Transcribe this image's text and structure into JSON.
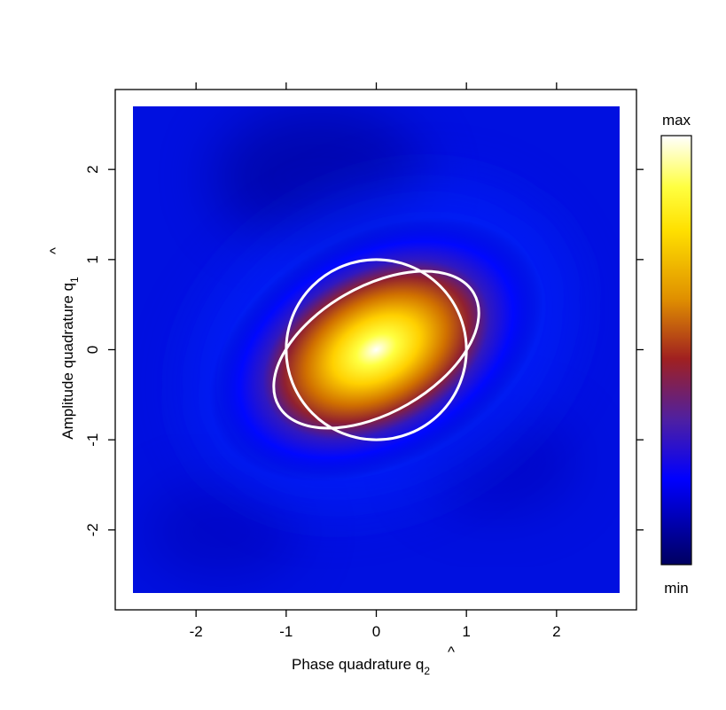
{
  "chart_data": {
    "type": "heatmap",
    "title": "",
    "xlabel": "Phase quadrature q",
    "xlabel_subscript": "2",
    "xlabel_hat": "^",
    "ylabel": "Amplitude quadrature q",
    "ylabel_subscript": "1",
    "ylabel_hat": "^",
    "xlim": [
      -2.7,
      2.7
    ],
    "ylim": [
      -2.7,
      2.7
    ],
    "x_ticks": [
      -2,
      -1,
      0,
      1,
      2
    ],
    "y_ticks": [
      -2,
      -1,
      0,
      1,
      2
    ],
    "x_tick_labels": [
      "-2",
      "-1",
      "0",
      "1",
      "2"
    ],
    "y_tick_labels": [
      "-2",
      "-1",
      "0",
      "1",
      "2"
    ],
    "colorbar": {
      "max_label": "max",
      "min_label": "min",
      "colors": [
        "#ffffff",
        "#ffff00",
        "#e09000",
        "#a02020",
        "#4020a0",
        "#0000ff",
        "#000050"
      ]
    },
    "distribution": {
      "center": [
        0,
        0
      ],
      "sigma_major": 0.62,
      "sigma_minor": 0.4,
      "major_axis_angle_deg": 28
    },
    "ellipses": [
      {
        "name": "",
        "center": [
          0,
          0
        ],
        "semi_major": 1.25,
        "semi_minor": 0.7,
        "angle_deg": 30,
        "color": "#ffffff"
      },
      {
        "name": "",
        "center": [
          0,
          0
        ],
        "semi_x": 1.0,
        "semi_y": 1.0,
        "angle_deg": 0,
        "color": "#ffffff"
      }
    ],
    "grid": false,
    "legend": "none"
  }
}
